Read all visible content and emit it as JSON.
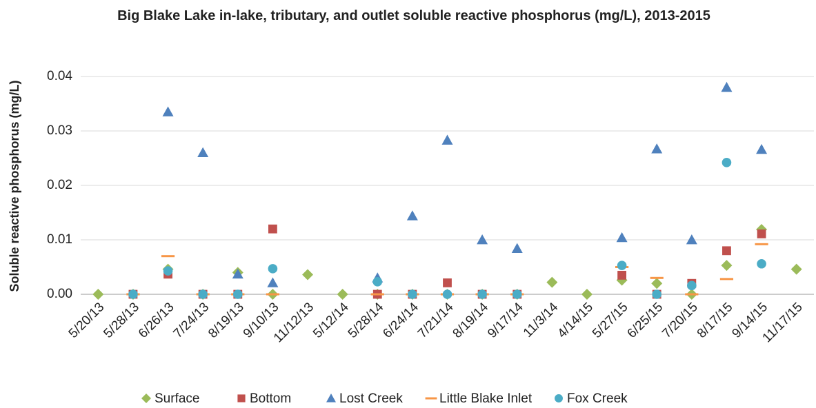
{
  "chart_data": {
    "type": "scatter",
    "title": "Big Blake Lake in-lake, tributary, and outlet soluble reactive phosphorus (mg/L), 2013-2015",
    "ylabel": "Soluble reactive phosphorus  (mg/L)",
    "categories": [
      "5/20/13",
      "5/28/13",
      "6/26/13",
      "7/24/13",
      "8/19/13",
      "9/10/13",
      "11/12/13",
      "5/12/14",
      "5/28/14",
      "6/24/14",
      "7/21/14",
      "8/19/14",
      "9/17/14",
      "11/3/14",
      "4/14/15",
      "5/27/15",
      "6/25/15",
      "7/20/15",
      "8/17/15",
      "9/14/15",
      "11/17/15"
    ],
    "series": [
      {
        "name": "Surface",
        "color": "#9bbb59",
        "marker": "diamond",
        "values": [
          0,
          0,
          0.0046,
          0,
          0.004,
          0,
          0.0036,
          0,
          0,
          0,
          0,
          0,
          0,
          0.0022,
          0,
          0.0026,
          0.002,
          0,
          0.0053,
          0.0119,
          0.0046
        ]
      },
      {
        "name": "Bottom",
        "color": "#c0504d",
        "marker": "square",
        "values": [
          null,
          0,
          0.0037,
          0,
          0,
          0.012,
          null,
          null,
          0,
          0,
          0.0021,
          0,
          0,
          null,
          null,
          0.0035,
          0,
          0.002,
          0.008,
          0.0111,
          null
        ]
      },
      {
        "name": "Lost Creek",
        "color": "#4f81bd",
        "marker": "triangle",
        "values": [
          null,
          null,
          0.0335,
          0.026,
          0.0037,
          0.0021,
          null,
          null,
          0.003,
          0.0144,
          0.0283,
          0.01,
          0.0084,
          null,
          null,
          0.0104,
          0.0267,
          0.01,
          0.038,
          0.0266,
          null
        ]
      },
      {
        "name": "Little Blake Inlet",
        "color": "#f79646",
        "marker": "dash",
        "values": [
          null,
          0,
          0.007,
          0,
          0,
          0,
          null,
          null,
          0,
          0,
          0,
          0,
          0,
          null,
          null,
          0.005,
          0.003,
          0,
          0.0028,
          0.0092,
          null
        ]
      },
      {
        "name": "Fox Creek",
        "color": "#4bacc6",
        "marker": "circle",
        "values": [
          null,
          0,
          0.0043,
          0,
          0,
          0.0047,
          null,
          null,
          0.0023,
          0,
          0,
          0,
          0,
          null,
          null,
          0.0053,
          0,
          0.0016,
          0.0242,
          0.0056,
          null
        ]
      }
    ],
    "ylim": [
      0,
      0.04
    ],
    "yticks": [
      {
        "value": 0,
        "label": "0.00"
      },
      0.01,
      0.02,
      0.03,
      0.04
    ],
    "grid": true,
    "legend": "bottom"
  }
}
